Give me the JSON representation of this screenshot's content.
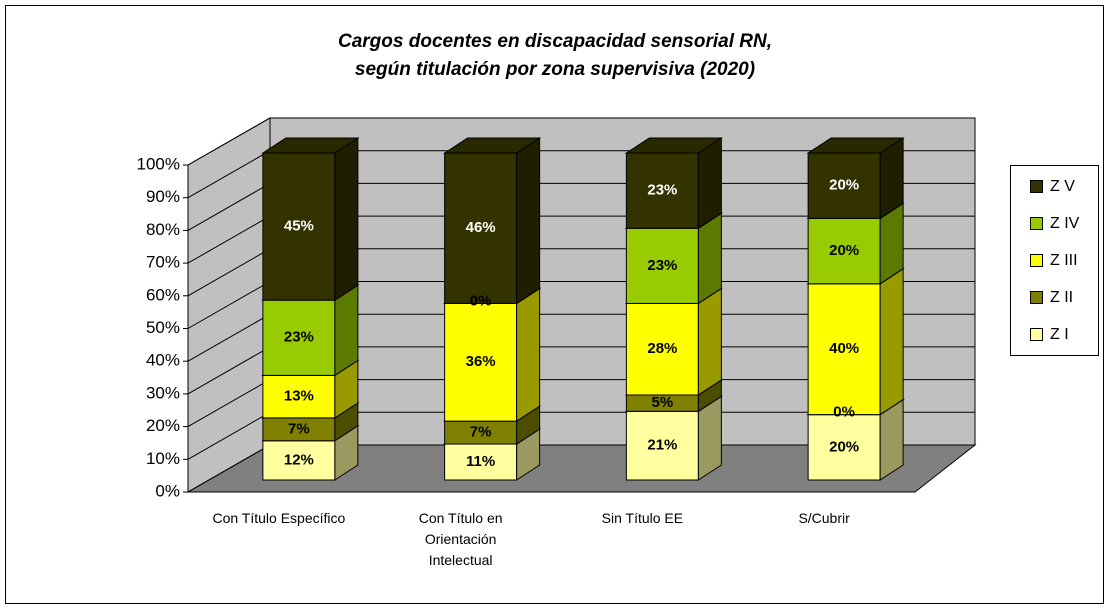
{
  "chart_data": {
    "type": "bar3d_stacked",
    "title": [
      "Cargos docentes en discapacidad sensorial RN,",
      "según titulación por zona supervisiva (2020)"
    ],
    "categories": [
      "Con Título Específico",
      "Con Título en\nOrientación\nIntelectual",
      "Sin Título EE",
      "S/Cubrir"
    ],
    "series": [
      {
        "name": "Z I",
        "color": "#ffffa0",
        "values": [
          12,
          11,
          21,
          20
        ],
        "value_labels": [
          "12%",
          "11%",
          "21%",
          "20%"
        ]
      },
      {
        "name": "Z II",
        "color": "#808000",
        "values": [
          7,
          7,
          5,
          0
        ],
        "value_labels": [
          "7%",
          "7%",
          "5%",
          "0%"
        ]
      },
      {
        "name": "Z III",
        "color": "#ffff00",
        "values": [
          13,
          36,
          28,
          40
        ],
        "value_labels": [
          "13%",
          "36%",
          "28%",
          "40%"
        ]
      },
      {
        "name": "Z IV",
        "color": "#99cc00",
        "values": [
          23,
          0,
          23,
          20
        ],
        "value_labels": [
          "23%",
          "0%",
          "23%",
          "20%"
        ]
      },
      {
        "name": "Z V",
        "color": "#333300",
        "values": [
          45,
          46,
          23,
          20
        ],
        "value_labels": [
          "45%",
          "46%",
          "23%",
          "20%"
        ]
      }
    ],
    "ylim": [
      0,
      100
    ],
    "yticks": [
      {
        "value": 0,
        "label": "0%"
      },
      {
        "value": 10,
        "label": "10%"
      },
      {
        "value": 20,
        "label": "20%"
      },
      {
        "value": 30,
        "label": "30%"
      },
      {
        "value": 40,
        "label": "40%"
      },
      {
        "value": 50,
        "label": "50%"
      },
      {
        "value": 60,
        "label": "60%"
      },
      {
        "value": 70,
        "label": "70%"
      },
      {
        "value": 80,
        "label": "80%"
      },
      {
        "value": 90,
        "label": "90%"
      },
      {
        "value": 100,
        "label": "100%"
      }
    ],
    "grid": true,
    "legend": "right"
  }
}
